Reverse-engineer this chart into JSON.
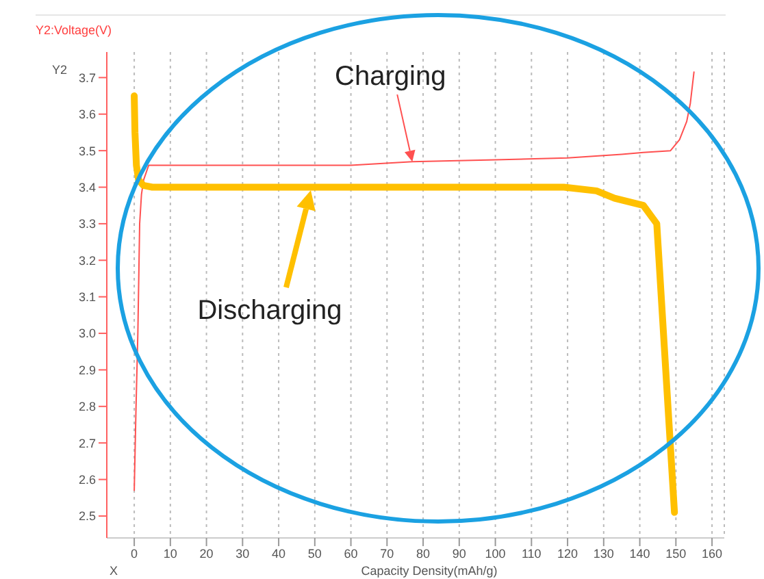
{
  "chart_data": {
    "type": "line",
    "title": "Y2:Voltage(V)",
    "xlabel": "Capacity Density(mAh/g)",
    "ylabel": "Y2",
    "xlim": [
      -7.6,
      163.4
    ],
    "ylim": [
      2.44,
      3.77
    ],
    "xticks": [
      0,
      10,
      20,
      30,
      40,
      50,
      60,
      70,
      80,
      90,
      100,
      110,
      120,
      130,
      140,
      150,
      160
    ],
    "yticks": [
      2.5,
      2.6,
      2.7,
      2.8,
      2.9,
      {
        "value": 3,
        "label": "3.0"
      },
      3.1,
      3.2,
      3.3,
      3.4,
      3.5,
      3.6,
      3.7
    ],
    "grid": "x",
    "marker": "none",
    "line_style": "solid",
    "series": [
      {
        "type": "line",
        "color": "#ff5050",
        "x": [
          0,
          0.5,
          1,
          1.5,
          2,
          2.6,
          4,
          10,
          40,
          60,
          77,
          100,
          120,
          135,
          141,
          148.5,
          151,
          153,
          154,
          155
        ],
        "values": [
          2.57,
          2.8,
          3.0,
          3.3,
          3.38,
          3.42,
          3.46,
          3.46,
          3.46,
          3.46,
          3.47,
          3.475,
          3.48,
          3.49,
          3.495,
          3.5,
          3.53,
          3.58,
          3.63,
          3.715
        ]
      },
      {
        "type": "line",
        "color": "#ffc000",
        "x": [
          0,
          0.2,
          0.6,
          1.2,
          2.5,
          5,
          50,
          100,
          119,
          128,
          133,
          137,
          141,
          144.7,
          149.6
        ],
        "values": [
          3.65,
          3.55,
          3.46,
          3.42,
          3.405,
          3.4,
          3.4,
          3.4,
          3.4,
          3.39,
          3.37,
          3.36,
          3.35,
          3.3,
          2.51
        ]
      }
    ],
    "annotations": [
      {
        "text": "Charging",
        "x": 77,
        "y": 3.47
      },
      "Discharging",
      "X"
    ]
  }
}
